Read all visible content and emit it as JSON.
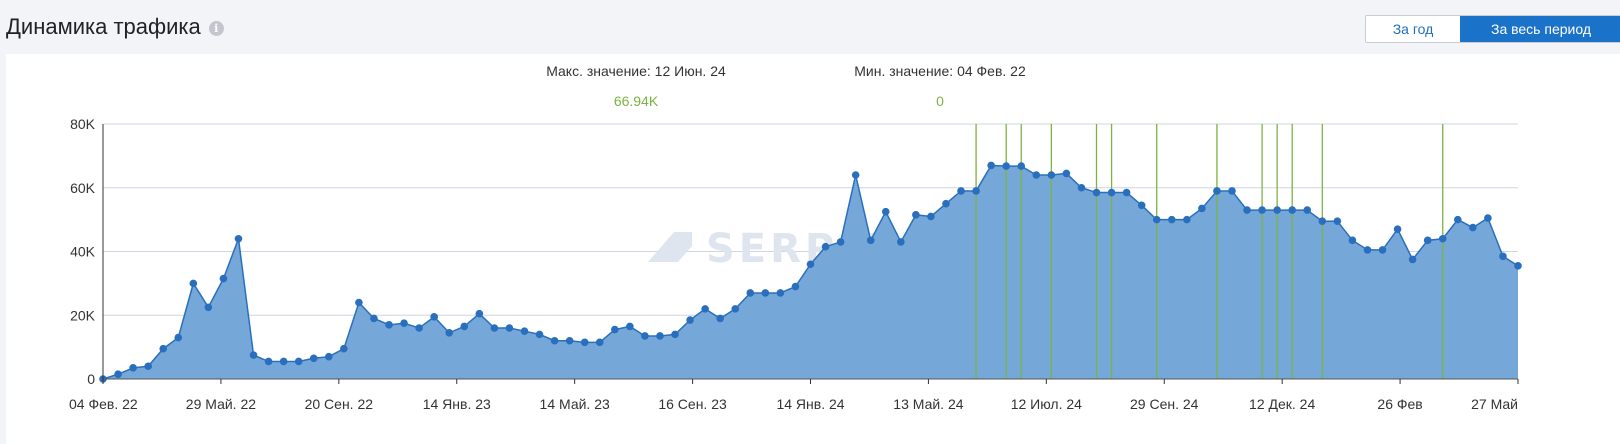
{
  "header": {
    "title": "Динамика трафика",
    "info_icon": "i"
  },
  "period": {
    "year_label": "За год",
    "all_label": "За весь период",
    "selected": "all"
  },
  "stats": {
    "max_label": "Макс. значение: 12 Июн. 24",
    "max_value": "66.94K",
    "min_label": "Мин. значение: 04 Фев. 22",
    "min_value": "0"
  },
  "watermark": "SERPSTAT",
  "colors": {
    "area_fill": "#75a8d8",
    "line": "#2a6fbd",
    "marker": "#2a6fbd",
    "grid": "#d0d4e4",
    "event_line": "#7cb342",
    "accent": "#1a73c8",
    "value_green": "#7cb342"
  },
  "chart_data": {
    "type": "area",
    "x_tick_labels": [
      "04 Фев. 22",
      "29 Май. 22",
      "20 Сен. 22",
      "14 Янв. 23",
      "14 Май. 23",
      "16 Сен. 23",
      "14 Янв. 24",
      "13 Май. 24",
      "12 Июл. 24",
      "29 Сен. 24",
      "12 Дек. 24",
      "26 Фев",
      "27 Май"
    ],
    "y_tick_labels": [
      "0",
      "20K",
      "40K",
      "60K",
      "80K"
    ],
    "y_ticks": [
      0,
      20000,
      40000,
      60000,
      80000
    ],
    "ylim": [
      0,
      80000
    ],
    "grid": true,
    "series": [
      {
        "values": [
          0,
          1500,
          3500,
          4000,
          9500,
          13000,
          30000,
          22500,
          31500,
          44000,
          7500,
          5500,
          5500,
          5500,
          6500,
          7000,
          9500,
          24000,
          19000,
          17000,
          17500,
          16000,
          19500,
          14500,
          16500,
          20500,
          16000,
          16000,
          15000,
          14000,
          12000,
          12000,
          11500,
          11500,
          15500,
          16500,
          13500,
          13500,
          14000,
          18500,
          22000,
          19000,
          22000,
          27000,
          27000,
          27000,
          29000,
          36000,
          41500,
          43000,
          64000,
          43500,
          52500,
          43000,
          51500,
          51000,
          55000,
          59000,
          59000,
          67000,
          66800,
          66800,
          64000,
          64000,
          64500,
          60000,
          58500,
          58500,
          58500,
          54500,
          50000,
          50000,
          50000,
          53500,
          59000,
          59000,
          53000,
          53000,
          53000,
          53000,
          53000,
          49500,
          49500,
          43500,
          40500,
          40500,
          47000,
          37500,
          43500,
          44000,
          50000,
          47500,
          50500,
          38500,
          35500
        ]
      }
    ],
    "event_marker_indices": [
      58,
      60,
      61,
      63,
      66,
      67,
      70,
      74,
      77,
      78,
      79,
      81,
      89
    ]
  }
}
